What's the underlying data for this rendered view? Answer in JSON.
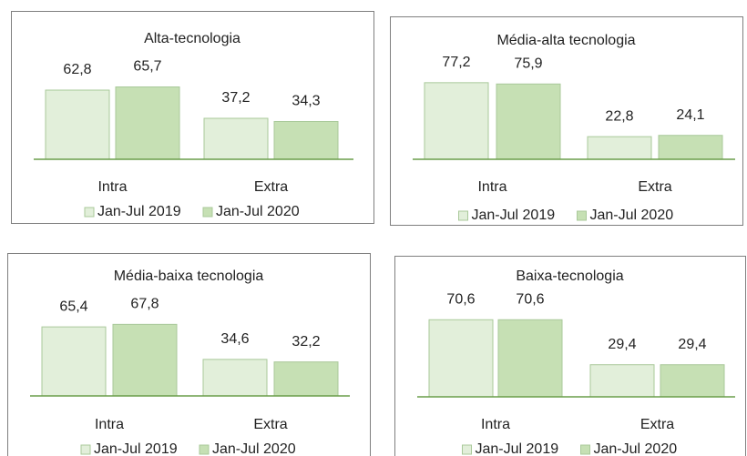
{
  "chart_data": [
    {
      "type": "bar",
      "title": "Alta-tecnologia",
      "categories": [
        "Intra",
        "Extra"
      ],
      "series": [
        {
          "name": "Jan-Jul 2019",
          "color": "#e2efda",
          "values": [
            62.8,
            37.2
          ],
          "value_labels": [
            "62,8",
            "37,2"
          ]
        },
        {
          "name": "Jan-Jul 2020",
          "color": "#c6e0b4",
          "values": [
            65.7,
            34.3
          ],
          "value_labels": [
            "65,7",
            "34,3"
          ]
        }
      ]
    },
    {
      "type": "bar",
      "title": "Média-alta tecnologia",
      "categories": [
        "Intra",
        "Extra"
      ],
      "series": [
        {
          "name": "Jan-Jul 2019",
          "color": "#e2efda",
          "values": [
            77.2,
            22.8
          ],
          "value_labels": [
            "77,2",
            "22,8"
          ]
        },
        {
          "name": "Jan-Jul 2020",
          "color": "#c6e0b4",
          "values": [
            75.9,
            24.1
          ],
          "value_labels": [
            "75,9",
            "24,1"
          ]
        }
      ]
    },
    {
      "type": "bar",
      "title": "Média-baixa tecnologia",
      "categories": [
        "Intra",
        "Extra"
      ],
      "series": [
        {
          "name": "Jan-Jul 2019",
          "color": "#e2efda",
          "values": [
            65.4,
            34.6
          ],
          "value_labels": [
            "65,4",
            "34,6"
          ]
        },
        {
          "name": "Jan-Jul 2020",
          "color": "#c6e0b4",
          "values": [
            67.8,
            32.2
          ],
          "value_labels": [
            "67,8",
            "32,2"
          ]
        }
      ]
    },
    {
      "type": "bar",
      "title": "Baixa-tecnologia",
      "categories": [
        "Intra",
        "Extra"
      ],
      "series": [
        {
          "name": "Jan-Jul 2019",
          "color": "#e2efda",
          "values": [
            70.6,
            29.4
          ],
          "value_labels": [
            "70,6",
            "29,4"
          ]
        },
        {
          "name": "Jan-Jul 2020",
          "color": "#c6e0b4",
          "values": [
            70.6,
            29.4
          ],
          "value_labels": [
            "70,6",
            "29,4"
          ]
        }
      ]
    }
  ]
}
